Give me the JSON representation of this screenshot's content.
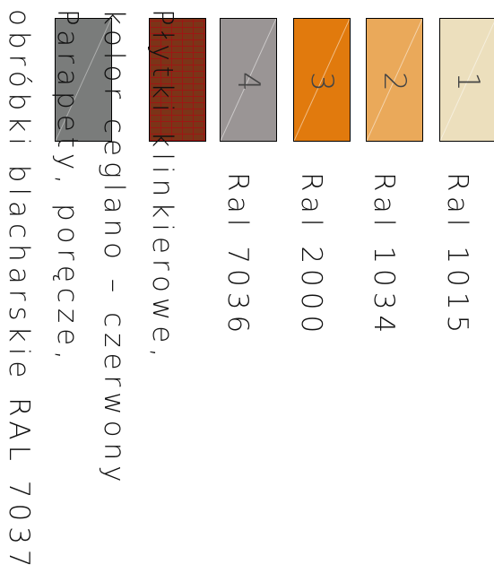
{
  "legend": {
    "items": [
      {
        "number": "1",
        "label": "Ral 1015",
        "color": "#ecdfbd",
        "textured": false
      },
      {
        "number": "2",
        "label": "Ral 1034",
        "color": "#eaa95a",
        "textured": false
      },
      {
        "number": "3",
        "label": "Ral 2000",
        "color": "#e17a0d",
        "textured": false
      },
      {
        "number": "4",
        "label": "Ral 7036",
        "color": "#9a9595",
        "textured": false
      },
      {
        "number": "",
        "label": "Płytki klinkierowe,\nkolor ceglano – czerwony",
        "color": "#7b3418",
        "textured": true
      },
      {
        "number": "",
        "label": "Parapety, poręcze,\nobróbki blacharskie RAL 7037",
        "color": "#7a7c7b",
        "textured": false
      }
    ]
  }
}
